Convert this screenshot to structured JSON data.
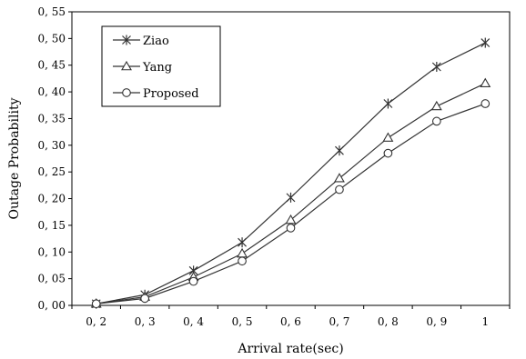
{
  "chart_data": {
    "type": "line",
    "title": "",
    "xlabel": "Arrival rate(sec)",
    "ylabel": "Outage Probability",
    "x": [
      "0, 2",
      "0, 3",
      "0, 4",
      "0, 5",
      "0, 6",
      "0, 7",
      "0, 8",
      "0, 9",
      "1"
    ],
    "ylim": [
      0,
      0.55
    ],
    "yticks": [
      "0, 00",
      "0, 05",
      "0, 10",
      "0, 15",
      "0, 20",
      "0, 25",
      "0, 30",
      "0, 35",
      "0, 40",
      "0, 45",
      "0, 50",
      "0, 55"
    ],
    "grid": false,
    "legend_position": "top-left",
    "series": [
      {
        "name": "Ziao",
        "marker": "asterisk",
        "values": [
          0.003,
          0.02,
          0.065,
          0.118,
          0.202,
          0.29,
          0.378,
          0.447,
          0.492
        ]
      },
      {
        "name": "Yang",
        "marker": "triangle",
        "values": [
          0.003,
          0.016,
          0.053,
          0.097,
          0.16,
          0.238,
          0.314,
          0.373,
          0.416
        ]
      },
      {
        "name": "Proposed",
        "marker": "circle",
        "values": [
          0.003,
          0.013,
          0.045,
          0.083,
          0.145,
          0.217,
          0.285,
          0.345,
          0.378
        ]
      }
    ],
    "line_color": "#333333"
  }
}
